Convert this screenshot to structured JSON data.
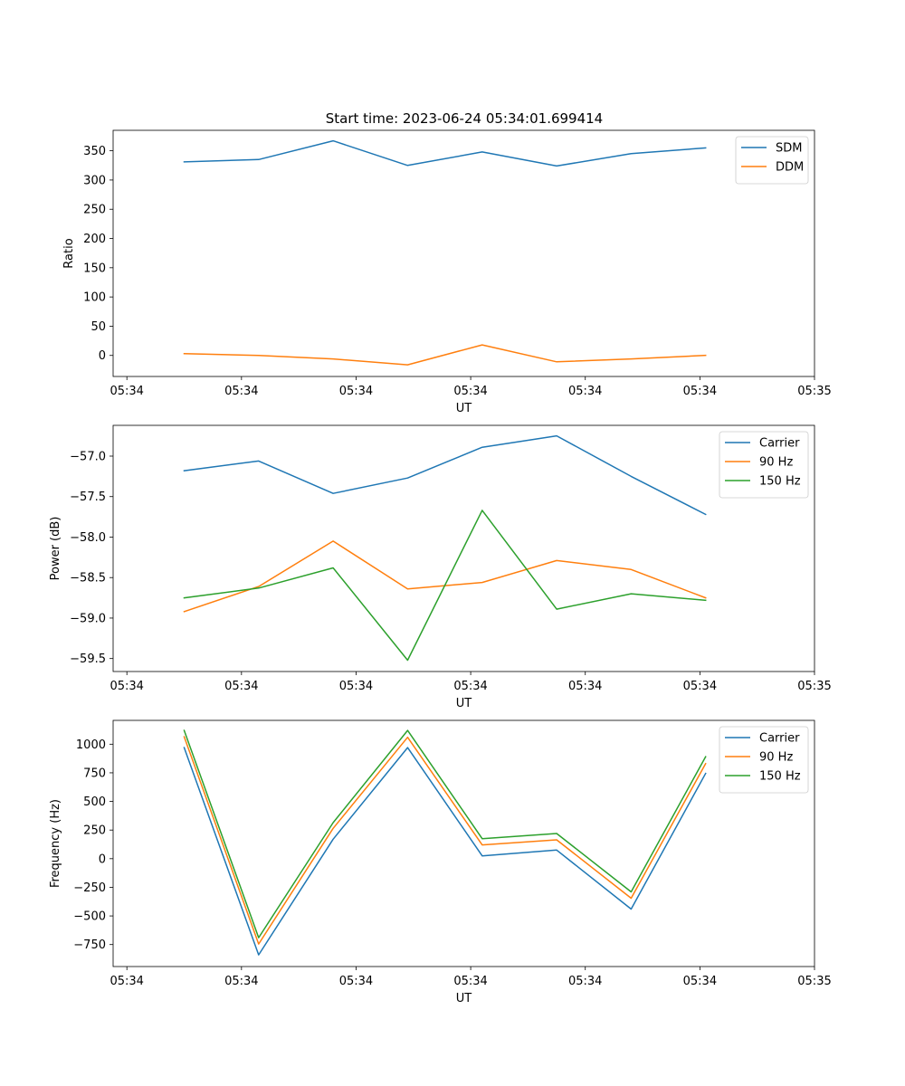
{
  "figure": {
    "title": "Start time: 2023-06-24 05:34:01.699414",
    "background": "#ffffff"
  },
  "chart_data": [
    {
      "type": "line",
      "xlabel": "UT",
      "ylabel": "Ratio",
      "x_tick_labels": [
        "05:34",
        "05:34",
        "05:34",
        "05:34",
        "05:34",
        "05:34",
        "05:35"
      ],
      "x_tick_pos": [
        0,
        1,
        2,
        3,
        4,
        5,
        6
      ],
      "xlim": [
        -0.12,
        6.0
      ],
      "x": [
        0.5,
        1.15,
        1.8,
        2.45,
        3.1,
        3.75,
        4.4,
        5.05
      ],
      "ylim": [
        -36,
        385
      ],
      "yticks": [
        0,
        50,
        100,
        150,
        200,
        250,
        300,
        350
      ],
      "legend_position": "top-right",
      "grid": false,
      "series": [
        {
          "name": "SDM",
          "color": "#1f77b4",
          "values": [
            331,
            335,
            367,
            325,
            348,
            324,
            345,
            355
          ]
        },
        {
          "name": "DDM",
          "color": "#ff7f0e",
          "values": [
            3,
            0,
            -6,
            -16,
            18,
            -11,
            -6,
            0
          ]
        }
      ]
    },
    {
      "type": "line",
      "xlabel": "UT",
      "ylabel": "Power (dB)",
      "x_tick_labels": [
        "05:34",
        "05:34",
        "05:34",
        "05:34",
        "05:34",
        "05:34",
        "05:35"
      ],
      "x_tick_pos": [
        0,
        1,
        2,
        3,
        4,
        5,
        6
      ],
      "xlim": [
        -0.12,
        6.0
      ],
      "x": [
        0.5,
        1.15,
        1.8,
        2.45,
        3.1,
        3.75,
        4.4,
        5.05
      ],
      "ylim": [
        -59.66,
        -56.62
      ],
      "yticks": [
        -59.5,
        -59.0,
        -58.5,
        -58.0,
        -57.5,
        -57.0
      ],
      "ytick_labels": [
        "−59.5",
        "−59.0",
        "−58.5",
        "−58.0",
        "−57.5",
        "−57.0"
      ],
      "legend_position": "top-right",
      "grid": false,
      "series": [
        {
          "name": "Carrier",
          "color": "#1f77b4",
          "values": [
            -57.18,
            -57.06,
            -57.46,
            -57.27,
            -56.89,
            -56.75,
            -57.25,
            -57.72
          ]
        },
        {
          "name": "90 Hz",
          "color": "#ff7f0e",
          "values": [
            -58.92,
            -58.61,
            -58.05,
            -58.64,
            -58.56,
            -58.29,
            -58.4,
            -58.75
          ]
        },
        {
          "name": "150 Hz",
          "color": "#2ca02c",
          "values": [
            -58.75,
            -58.63,
            -58.38,
            -59.52,
            -57.67,
            -58.89,
            -58.7,
            -58.78
          ]
        }
      ]
    },
    {
      "type": "line",
      "xlabel": "UT",
      "ylabel": "Frequency (Hz)",
      "x_tick_labels": [
        "05:34",
        "05:34",
        "05:34",
        "05:34",
        "05:34",
        "05:34",
        "05:35"
      ],
      "x_tick_pos": [
        0,
        1,
        2,
        3,
        4,
        5,
        6
      ],
      "xlim": [
        -0.12,
        6.0
      ],
      "x": [
        0.5,
        1.15,
        1.8,
        2.45,
        3.1,
        3.75,
        4.4,
        5.05
      ],
      "ylim": [
        -942,
        1208
      ],
      "yticks": [
        -750,
        -500,
        -250,
        0,
        250,
        500,
        750,
        1000
      ],
      "ytick_labels": [
        "−750",
        "−500",
        "−250",
        "0",
        "250",
        "500",
        "750",
        "1000"
      ],
      "legend_position": "top-right",
      "grid": false,
      "series": [
        {
          "name": "Carrier",
          "color": "#1f77b4",
          "values": [
            970,
            -840,
            170,
            970,
            25,
            75,
            -440,
            745
          ]
        },
        {
          "name": "90 Hz",
          "color": "#ff7f0e",
          "values": [
            1065,
            -745,
            265,
            1060,
            120,
            165,
            -345,
            830
          ]
        },
        {
          "name": "150 Hz",
          "color": "#2ca02c",
          "values": [
            1120,
            -690,
            315,
            1120,
            175,
            220,
            -290,
            890
          ]
        }
      ]
    }
  ]
}
